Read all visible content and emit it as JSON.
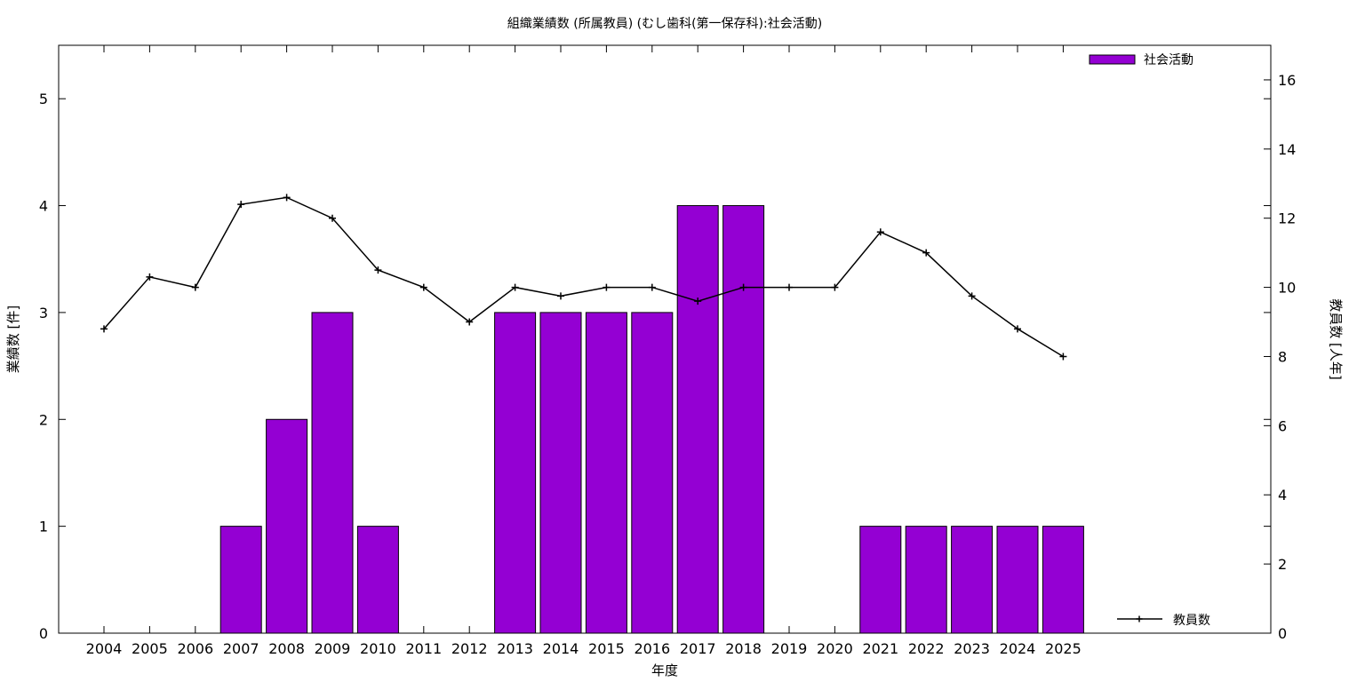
{
  "chart_data": {
    "type": "bar",
    "title": "組織業績数 (所属教員) (むし歯科(第一保存科):社会活動)",
    "xlabel": "年度",
    "ylabel": "業績数 [件]",
    "y2label": "教員数 [人年]",
    "categories": [
      "2004",
      "2005",
      "2006",
      "2007",
      "2008",
      "2009",
      "2010",
      "2011",
      "2012",
      "2013",
      "2014",
      "2015",
      "2016",
      "2017",
      "2018",
      "2019",
      "2020",
      "2021",
      "2022",
      "2023",
      "2024",
      "2025"
    ],
    "ylim": [
      0,
      5.5
    ],
    "yticks": [
      0,
      1,
      2,
      3,
      4,
      5
    ],
    "y2lim": [
      0,
      17
    ],
    "y2ticks": [
      0,
      2,
      4,
      6,
      8,
      10,
      12,
      14,
      16
    ],
    "grid": false,
    "series": [
      {
        "name": "社会活動",
        "kind": "bar",
        "axis": "left",
        "color": "#9400d3",
        "values": [
          0,
          0,
          0,
          1,
          2,
          3,
          1,
          0,
          0,
          3,
          3,
          3,
          3,
          4,
          4,
          0,
          0,
          1,
          1,
          1,
          1,
          1
        ]
      },
      {
        "name": "教員数",
        "kind": "line",
        "axis": "right",
        "color": "#000000",
        "values": [
          8.8,
          10.3,
          10.0,
          12.4,
          12.6,
          12.0,
          10.5,
          10.0,
          9.0,
          10.0,
          9.75,
          10.0,
          10.0,
          9.6,
          10.0,
          10.0,
          10.0,
          11.6,
          11.0,
          9.75,
          8.8,
          8.0
        ]
      }
    ],
    "legend": [
      {
        "label": "社会活動",
        "placement": "top-right"
      },
      {
        "label": "教員数",
        "placement": "bottom-right"
      }
    ]
  }
}
